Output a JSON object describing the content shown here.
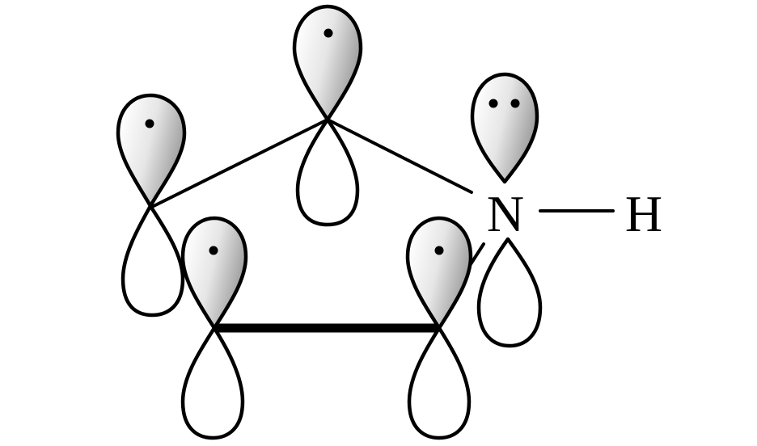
{
  "atoms": {
    "nitrogen": "N",
    "hydrogen": "H"
  },
  "orbitals": [
    {
      "id": "top-carbon",
      "electrons": 1
    },
    {
      "id": "left-upper-carbon",
      "electrons": 1
    },
    {
      "id": "left-lower-carbon",
      "electrons": 1
    },
    {
      "id": "right-lower-carbon",
      "electrons": 1
    },
    {
      "id": "nitrogen",
      "electrons": 2
    }
  ],
  "colors": {
    "lobe_shade_dark": "#9a9a9a",
    "lobe_shade_light": "#ffffff",
    "line": "#000000"
  }
}
